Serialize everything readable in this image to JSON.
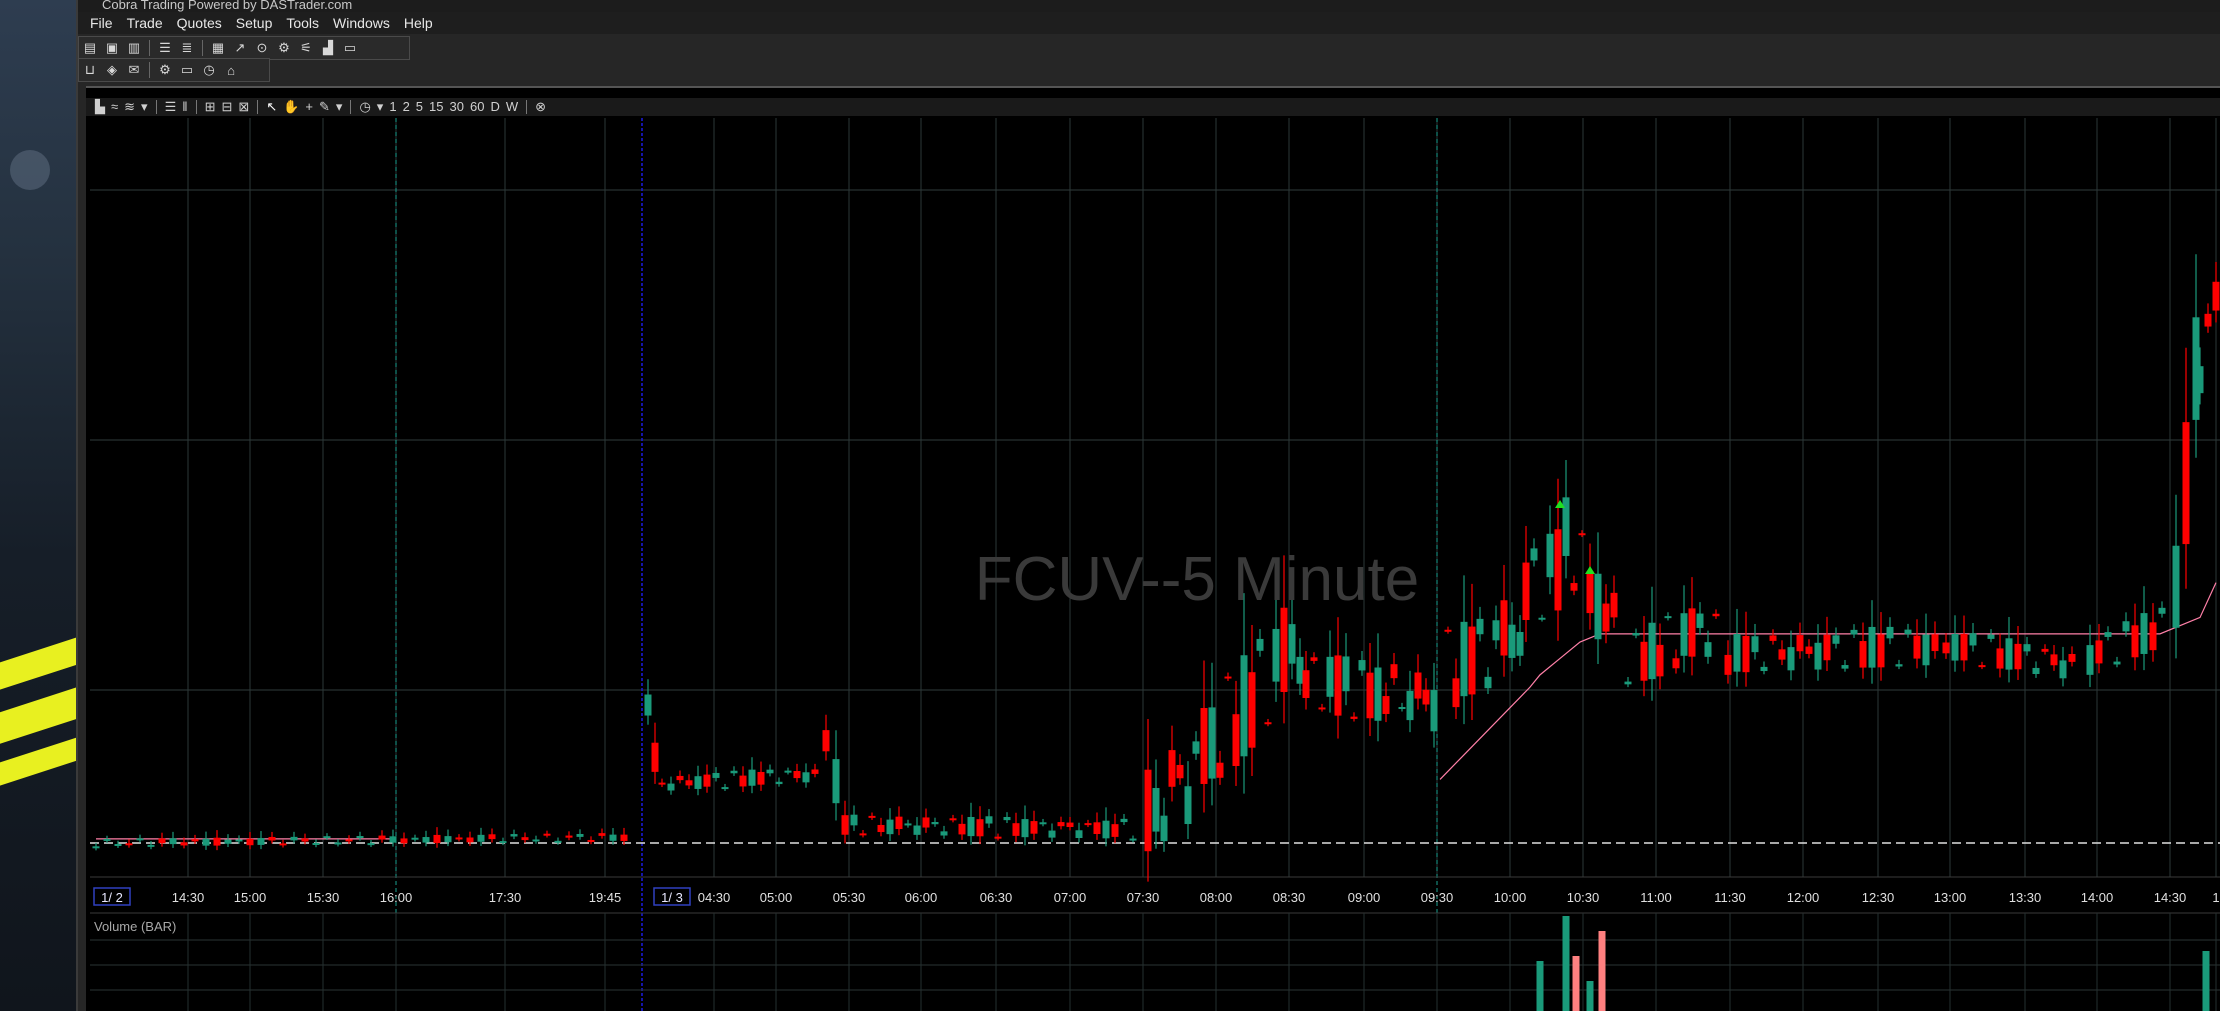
{
  "app": {
    "title": "Cobra Trading Powered by DASTrader.com"
  },
  "menu": {
    "items": [
      "File",
      "Trade",
      "Quotes",
      "Setup",
      "Tools",
      "Windows",
      "Help"
    ]
  },
  "toolbar1": {
    "icons": [
      "account-icon",
      "orders-icon",
      "trades-icon",
      "list-icon",
      "settings-list-icon",
      "chart-icon",
      "trend-icon",
      "scanner-icon",
      "alert-icon",
      "options-icon",
      "bar-chart-icon",
      "monitor-icon"
    ]
  },
  "toolbar2": {
    "icons": [
      "basket-icon",
      "hotkey-icon",
      "mail-icon",
      "gear-icon",
      "keyboard-icon",
      "clock-icon",
      "home-icon"
    ]
  },
  "chart_toolbar": {
    "timeframes": [
      "1",
      "2",
      "5",
      "15",
      "30",
      "60",
      "D",
      "W"
    ]
  },
  "chart": {
    "watermark": "FCUV--5 Minute",
    "volume_label": "Volume (BAR)"
  },
  "colors": {
    "bull": "#1a9a7a",
    "bear": "#ff0000",
    "vwap": "#ff80a8",
    "grid": "#2a3a3a",
    "session_line": "#1aa090",
    "day_line": "#1a1ae0",
    "watermark": "#3a3a3a"
  },
  "chart_data": {
    "type": "candlestick",
    "symbol": "FCUV",
    "timeframe": "5 Minute",
    "x_tick_labels": [
      "1/ 2",
      "14:30",
      "15:00",
      "15:30",
      "16:00",
      "17:30",
      "19:45",
      "1/ 3",
      "04:30",
      "05:00",
      "05:30",
      "06:00",
      "06:30",
      "07:00",
      "07:30",
      "08:00",
      "08:30",
      "09:00",
      "09:30",
      "10:00",
      "10:30",
      "11:00",
      "11:30",
      "12:00",
      "12:30",
      "13:00",
      "13:30",
      "14:00",
      "14:30",
      "1"
    ],
    "price_levels": {
      "baseline": 0,
      "prev_day": 2,
      "premarket_spike": 65,
      "morning_high": 115,
      "session_high": 170,
      "midday": 103,
      "late_spike": 250
    },
    "vwap_visible": true,
    "dashed_reference_line": true,
    "volume_visible": true
  }
}
